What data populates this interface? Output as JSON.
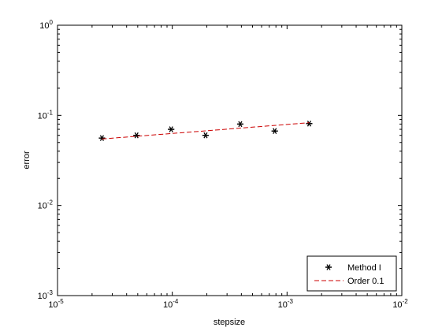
{
  "chart_data": {
    "type": "scatter",
    "xscale": "log",
    "yscale": "log",
    "xlim": [
      1e-05,
      0.01
    ],
    "ylim": [
      0.001,
      1
    ],
    "xlabel": "stepsize",
    "ylabel": "error",
    "grid": false,
    "legend_position": "bottom-right",
    "xticks": [
      {
        "value": 1e-05,
        "base": "10",
        "exp": "-5"
      },
      {
        "value": 0.0001,
        "base": "10",
        "exp": "-4"
      },
      {
        "value": 0.001,
        "base": "10",
        "exp": "-3"
      },
      {
        "value": 0.01,
        "base": "10",
        "exp": "-2"
      }
    ],
    "yticks": [
      {
        "value": 0.001,
        "base": "10",
        "exp": "-3"
      },
      {
        "value": 0.01,
        "base": "10",
        "exp": "-2"
      },
      {
        "value": 0.1,
        "base": "10",
        "exp": "-1"
      },
      {
        "value": 1,
        "base": "10",
        "exp": "0"
      }
    ],
    "series": [
      {
        "name": "Method I",
        "style": "marker",
        "marker": "*",
        "color": "#000000",
        "x": [
          2.44e-05,
          4.88e-05,
          9.77e-05,
          0.000195,
          0.000391,
          0.000781,
          0.00156
        ],
        "y": [
          0.056,
          0.06,
          0.07,
          0.06,
          0.08,
          0.067,
          0.081
        ]
      },
      {
        "name": "Order 0.1",
        "style": "dashed-line",
        "color": "#cc0000",
        "x": [
          2.44e-05,
          4.88e-05,
          9.77e-05,
          0.000195,
          0.000391,
          0.000781,
          0.00156
        ],
        "y": [
          0.0547,
          0.0586,
          0.0628,
          0.0673,
          0.0722,
          0.0773,
          0.0829
        ]
      }
    ]
  }
}
